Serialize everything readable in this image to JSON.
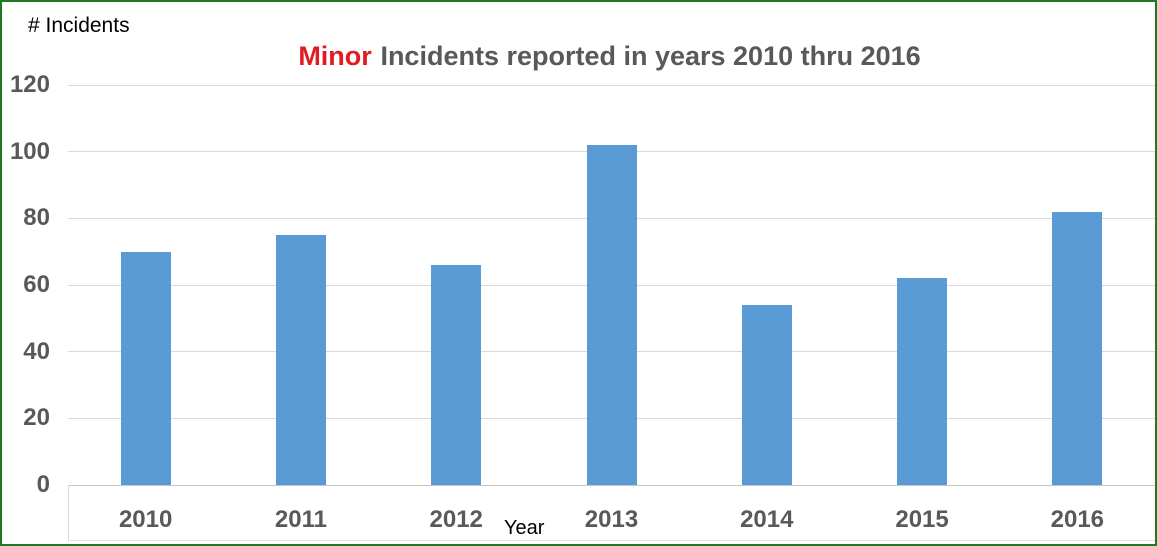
{
  "header": {
    "title_highlight": "Minor",
    "title_rest": "Incidents reported in years 2010 thru 2016"
  },
  "chart_data": {
    "type": "bar",
    "title": "Minor Incidents reported in years 2010 thru 2016",
    "categories": [
      "2010",
      "2011",
      "2012",
      "2013",
      "2014",
      "2015",
      "2016"
    ],
    "values": [
      70,
      75,
      66,
      102,
      54,
      62,
      82
    ],
    "xlabel": "Year",
    "ylabel": "# Incidents",
    "ylim": [
      0,
      120
    ],
    "yticks": [
      0,
      20,
      40,
      60,
      80,
      100,
      120
    ],
    "grid": true,
    "legend": "none",
    "bar_color": "#5B9BD5"
  },
  "colors": {
    "bar": "#5B9BD5",
    "title_highlight": "#E01B22",
    "title_text": "#595959",
    "axis_tick_text": "#595959",
    "axis_title_text": "#000000",
    "gridline": "#D9D9D9",
    "border": "#1E7A22",
    "background": "#FFFFFF"
  }
}
